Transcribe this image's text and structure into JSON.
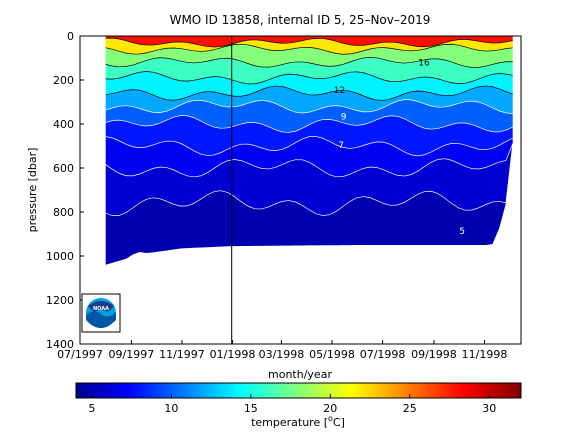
{
  "chart_data": {
    "type": "heatmap",
    "title": "WMO ID 13858, internal ID 5, 25–Nov–2019",
    "xlabel": "month/year",
    "ylabel": "pressure [dbar]",
    "colorbar_label": "temperature [",
    "colorbar_unit": "C]",
    "colorbar_unit_symbol": "o",
    "x_ticks": [
      "07/1997",
      "09/1997",
      "11/1997",
      "01/1998",
      "03/1998",
      "05/1998",
      "07/1998",
      "09/1998",
      "11/1998"
    ],
    "y_ticks": [
      0,
      200,
      400,
      600,
      800,
      1000,
      1200,
      1400
    ],
    "ylim": [
      1400,
      0
    ],
    "xlim": [
      "1997-07-01",
      "1998-12-15"
    ],
    "colorbar_ticks": [
      5,
      10,
      15,
      20,
      25,
      30
    ],
    "colorbar_range": [
      4,
      32
    ],
    "vertical_marker": "1997-12-31",
    "contour_labels": [
      {
        "text": "16",
        "date": "1998-08-20",
        "pressure": 135
      },
      {
        "text": "12",
        "date": "1998-05-10",
        "pressure": 260
      },
      {
        "text": "9",
        "date": "1998-05-15",
        "pressure": 380
      },
      {
        "text": "7",
        "date": "1998-05-12",
        "pressure": 510
      },
      {
        "text": "5",
        "date": "1998-10-05",
        "pressure": 900
      }
    ],
    "temperature_layers": [
      {
        "temperature": 28,
        "top": 0,
        "bottom": 30
      },
      {
        "temperature": 22,
        "top": 30,
        "bottom": 60
      },
      {
        "temperature": 18,
        "top": 60,
        "bottom": 120
      },
      {
        "temperature": 16,
        "top": 120,
        "bottom": 190
      },
      {
        "temperature": 14,
        "top": 190,
        "bottom": 260
      },
      {
        "temperature": 12,
        "top": 260,
        "bottom": 320
      },
      {
        "temperature": 10,
        "top": 320,
        "bottom": 400
      },
      {
        "temperature": 8,
        "top": 400,
        "bottom": 500
      },
      {
        "temperature": 7,
        "top": 500,
        "bottom": 600
      },
      {
        "temperature": 6,
        "top": 600,
        "bottom": 760
      },
      {
        "temperature": 5,
        "top": 760,
        "bottom": 1050
      }
    ],
    "profile_depth": [
      {
        "date": "1997-08-01",
        "pressure": 1040
      },
      {
        "date": "1997-09-15",
        "pressure": 990
      },
      {
        "date": "1997-11-01",
        "pressure": 965
      },
      {
        "date": "1998-01-01",
        "pressure": 955
      },
      {
        "date": "1998-06-01",
        "pressure": 950
      },
      {
        "date": "1998-11-10",
        "pressure": 950
      },
      {
        "date": "1998-11-25",
        "pressure": 820
      },
      {
        "date": "1998-12-05",
        "pressure": 490
      }
    ],
    "colors": {
      "colormap": [
        "#00008f",
        "#0000ff",
        "#00ffff",
        "#ffff00",
        "#ff0000",
        "#800000"
      ]
    }
  },
  "logo": {
    "text": "NOAA"
  }
}
